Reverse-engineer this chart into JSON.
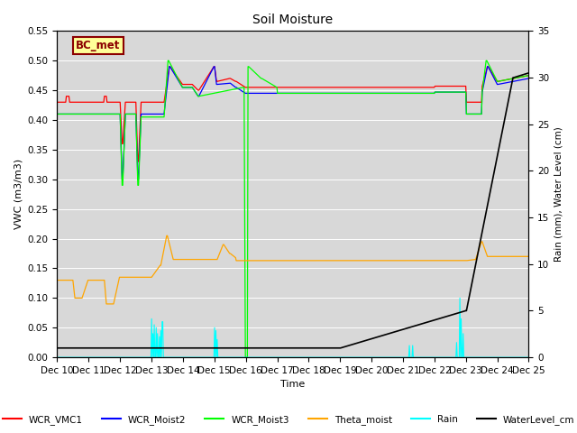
{
  "title": "Soil Moisture",
  "ylabel_left": "VWC (m3/m3)",
  "ylabel_right": "Rain (mm), Water Level (cm)",
  "xlabel": "Time",
  "ylim_left": [
    0.0,
    0.55
  ],
  "ylim_right": [
    0.0,
    35
  ],
  "background_color": "#d8d8d8",
  "annotation_text": "BC_met",
  "annotation_color": "#8B0000",
  "annotation_bg": "#FFFF99",
  "x_tick_labels": [
    "Dec 10",
    "Dec 11",
    "Dec 12",
    "Dec 13",
    "Dec 14",
    "Dec 15",
    "Dec 16",
    "Dec 17",
    "Dec 18",
    "Dec 19",
    "Dec 20",
    "Dec 21",
    "Dec 22",
    "Dec 23",
    "Dec 24",
    "Dec 25"
  ],
  "legend_entries": [
    "WCR_VMC1",
    "WCR_Moist2",
    "WCR_Moist3",
    "Theta_moist",
    "Rain",
    "WaterLevel_cm"
  ],
  "legend_colors": [
    "red",
    "blue",
    "lime",
    "orange",
    "cyan",
    "black"
  ],
  "figsize": [
    6.4,
    4.8
  ],
  "dpi": 100
}
